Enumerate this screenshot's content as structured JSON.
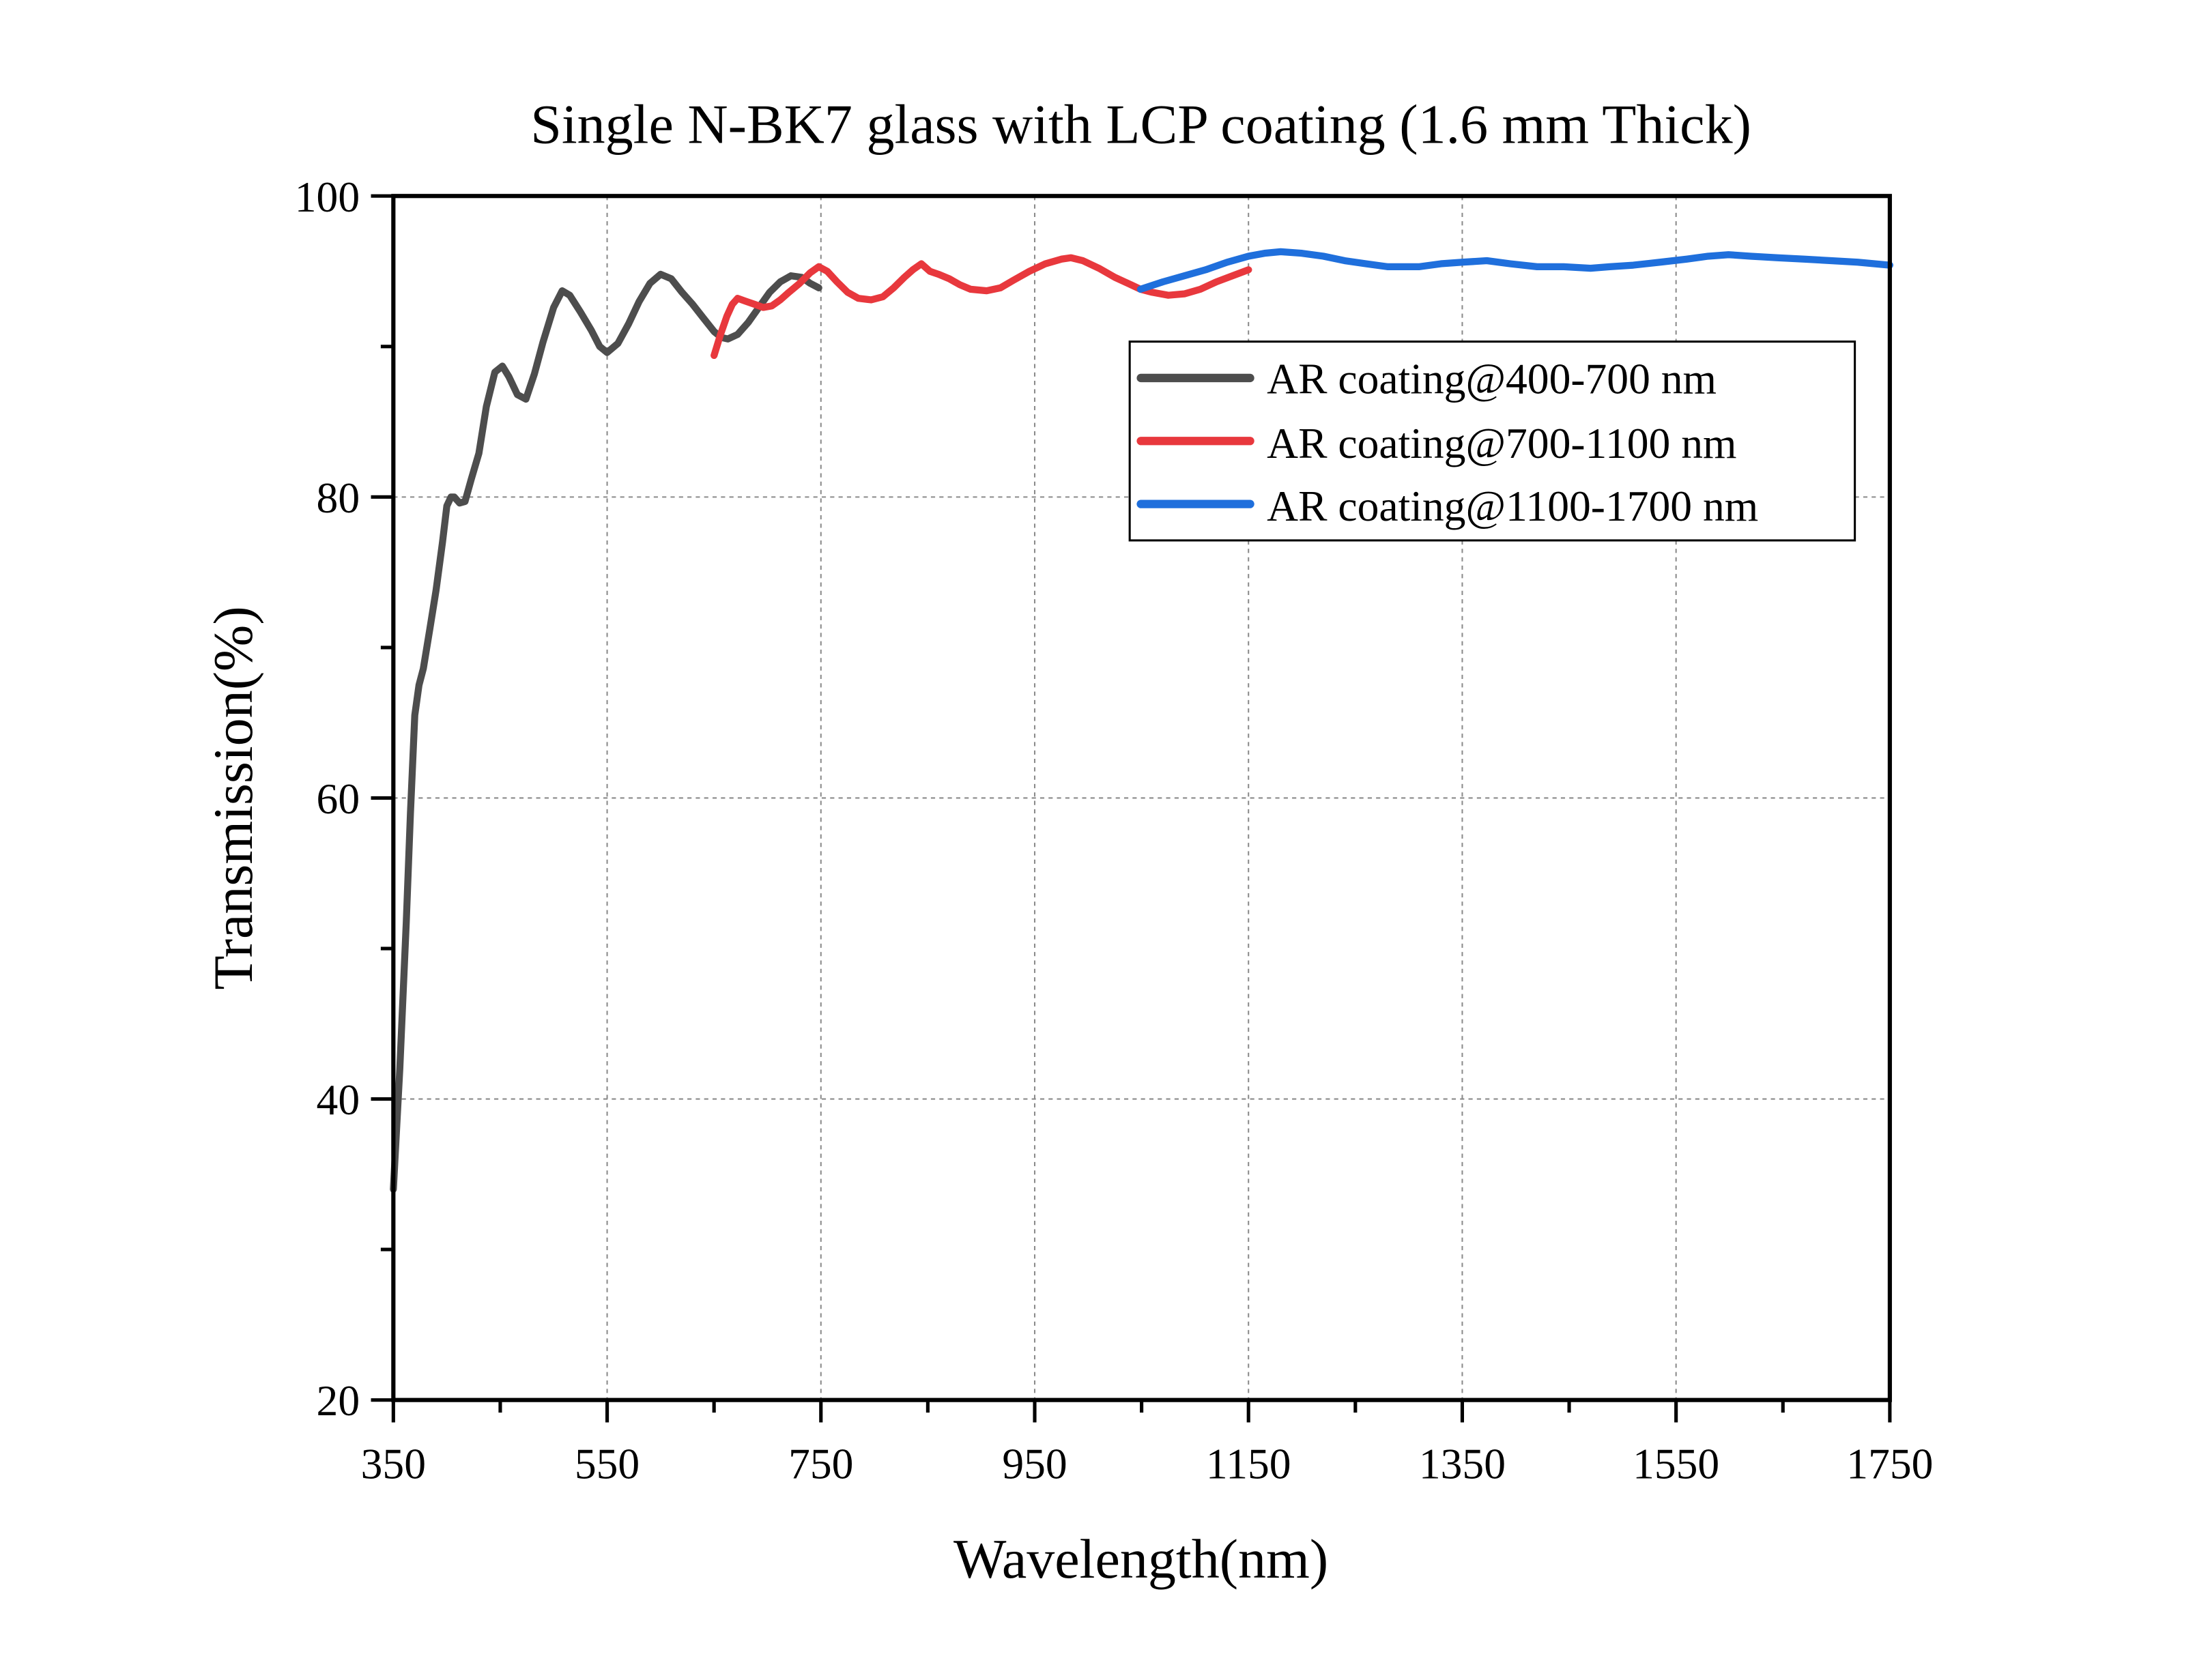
{
  "chart_data": {
    "type": "line",
    "title": "Single N-BK7 glass with LCP coating (1.6  mm Thick)",
    "xlabel": "Wavelength(nm)",
    "ylabel": "Transmission(%)",
    "xlim": [
      350,
      1750
    ],
    "ylim": [
      20,
      100
    ],
    "xticks": [
      350,
      550,
      750,
      950,
      1150,
      1350,
      1550,
      1750
    ],
    "xtick_labels": [
      "350",
      "550",
      "750",
      "950",
      "1150",
      "1350",
      "1550",
      "1750"
    ],
    "x_minor_ticks": [
      450,
      650,
      850,
      1050,
      1250,
      1450,
      1650
    ],
    "yticks": [
      20,
      40,
      60,
      80,
      100
    ],
    "ytick_labels": [
      "20",
      "40",
      "60",
      "80",
      "100"
    ],
    "y_minor_ticks": [
      30,
      50,
      70,
      90
    ],
    "grid": true,
    "legend_position": "upper-right",
    "series": [
      {
        "name": "AR coating@400-700 nm",
        "color": "#4d4d4d",
        "x": [
          350,
          356,
          362,
          366,
          370,
          374,
          378,
          384,
          390,
          396,
          400,
          404,
          407,
          412,
          417,
          423,
          430,
          437,
          445,
          452,
          458,
          466,
          474,
          482,
          490,
          500,
          508,
          515,
          525,
          535,
          543,
          550,
          560,
          570,
          580,
          590,
          600,
          610,
          620,
          630,
          640,
          650,
          657,
          663,
          672,
          682,
          692,
          702,
          712,
          722,
          732,
          740,
          748
        ],
        "y": [
          34,
          42,
          51.7,
          59,
          65.5,
          67.5,
          68.6,
          71.2,
          73.8,
          77,
          79.4,
          80,
          80,
          79.6,
          79.7,
          81.2,
          82.9,
          86,
          88.3,
          88.7,
          88,
          86.8,
          86.5,
          88.2,
          90.3,
          92.6,
          93.7,
          93.4,
          92.3,
          91.1,
          90.0,
          89.6,
          90.2,
          91.5,
          93.0,
          94.2,
          94.8,
          94.5,
          93.6,
          92.8,
          91.9,
          91.0,
          90.6,
          90.5,
          90.8,
          91.6,
          92.6,
          93.6,
          94.3,
          94.7,
          94.6,
          94.2,
          93.9
        ]
      },
      {
        "name": "AR coating@700-1100 nm",
        "color": "#e8383d",
        "x": [
          650,
          656,
          662,
          667,
          672,
          680,
          688,
          696,
          704,
          712,
          720,
          730,
          740,
          748,
          756,
          765,
          775,
          785,
          797,
          808,
          818,
          828,
          836,
          844,
          852,
          860,
          870,
          880,
          890,
          905,
          918,
          930,
          945,
          960,
          975,
          984,
          995,
          1010,
          1025,
          1040,
          1049,
          1060,
          1075,
          1090,
          1105,
          1120,
          1135,
          1150
        ],
        "y": [
          89.4,
          90.8,
          92.0,
          92.8,
          93.2,
          93.0,
          92.8,
          92.6,
          92.7,
          93.1,
          93.6,
          94.2,
          94.9,
          95.3,
          95.0,
          94.3,
          93.6,
          93.2,
          93.1,
          93.3,
          93.9,
          94.6,
          95.1,
          95.5,
          95.0,
          94.8,
          94.5,
          94.1,
          93.8,
          93.7,
          93.9,
          94.4,
          95.0,
          95.5,
          95.8,
          95.9,
          95.7,
          95.2,
          94.6,
          94.1,
          93.8,
          93.6,
          93.4,
          93.5,
          93.8,
          94.3,
          94.7,
          95.1
        ]
      },
      {
        "name": "AR coating@1100-1700 nm",
        "color": "#1f6fdc",
        "x": [
          1049,
          1070,
          1090,
          1110,
          1130,
          1150,
          1165,
          1180,
          1200,
          1220,
          1240,
          1260,
          1280,
          1292,
          1310,
          1330,
          1350,
          1373,
          1395,
          1420,
          1445,
          1470,
          1488,
          1510,
          1535,
          1560,
          1580,
          1599,
          1620,
          1645,
          1670,
          1695,
          1720,
          1750
        ],
        "y": [
          93.8,
          94.3,
          94.7,
          95.1,
          95.6,
          96.0,
          96.2,
          96.3,
          96.2,
          96.0,
          95.7,
          95.5,
          95.3,
          95.3,
          95.3,
          95.5,
          95.6,
          95.7,
          95.5,
          95.3,
          95.3,
          95.2,
          95.3,
          95.4,
          95.6,
          95.8,
          96.0,
          96.1,
          96.0,
          95.9,
          95.8,
          95.7,
          95.6,
          95.4
        ]
      }
    ]
  }
}
